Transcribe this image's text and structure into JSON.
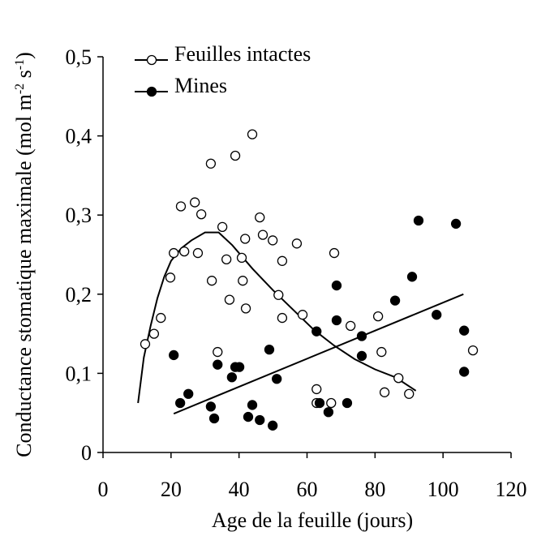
{
  "chart_data": {
    "type": "scatter",
    "xlabel": "Age de la feuille (jours)",
    "ylabel": [
      "Conductance stomatique maximale (mol m",
      "-2",
      " s",
      "-1",
      ")"
    ],
    "xlim": [
      0,
      120
    ],
    "xticks": [
      0,
      20,
      40,
      60,
      80,
      100,
      120
    ],
    "ylim": [
      0,
      0.5
    ],
    "yticks": [
      0,
      {
        "value": 0.1,
        "label": "0,1"
      },
      {
        "value": 0.2,
        "label": "0,2"
      },
      {
        "value": 0.3,
        "label": "0,3"
      },
      {
        "value": 0.4,
        "label": "0,4"
      },
      {
        "value": 0.5,
        "label": "0,5"
      }
    ],
    "legend": "upper left",
    "grid": false,
    "series": [
      {
        "name": "Feuilles intactes",
        "color": "#000000",
        "marker_fill": "#ffffff",
        "x": [
          12.4,
          15,
          17,
          19.8,
          20.8,
          22.9,
          23.9,
          27,
          27.9,
          28.9,
          31.7,
          32,
          33.7,
          35.1,
          36.3,
          37.2,
          38.9,
          40.8,
          41.1,
          41.8,
          42,
          43.9,
          46.1,
          47,
          49.9,
          51.6,
          52.7,
          52.7,
          57,
          58.7,
          62.8,
          62.8,
          67.1,
          68,
          72.8,
          80.9,
          81.9,
          82.8,
          86.9,
          90,
          108.8
        ],
        "values": [
          0.137,
          0.15,
          0.17,
          0.221,
          0.252,
          0.311,
          0.254,
          0.316,
          0.252,
          0.301,
          0.365,
          0.217,
          0.127,
          0.285,
          0.244,
          0.193,
          0.375,
          0.246,
          0.217,
          0.27,
          0.182,
          0.402,
          0.297,
          0.275,
          0.268,
          0.199,
          0.242,
          0.17,
          0.264,
          0.174,
          0.08,
          0.0625,
          0.0625,
          0.252,
          0.16,
          0.172,
          0.127,
          0.076,
          0.094,
          0.074,
          0.129
        ],
        "fit": {
          "x": [
            10.3,
            12,
            14,
            16,
            18,
            20,
            23,
            26,
            30,
            34,
            38,
            44,
            50,
            56,
            62,
            68,
            74,
            80,
            86,
            92
          ],
          "values": [
            0.0625,
            0.12,
            0.16,
            0.195,
            0.222,
            0.242,
            0.258,
            0.268,
            0.278,
            0.278,
            0.262,
            0.232,
            0.205,
            0.18,
            0.155,
            0.135,
            0.118,
            0.105,
            0.095,
            0.078
          ]
        }
      },
      {
        "name": "Mines",
        "color": "#000000",
        "marker_fill": "#000000",
        "x": [
          20.8,
          22.7,
          25.1,
          31.7,
          32.7,
          33.7,
          37.9,
          38.9,
          40.1,
          42.7,
          43.9,
          46.1,
          48.9,
          49.9,
          51.1,
          62.8,
          63.7,
          66.3,
          68.7,
          68.7,
          71.8,
          76.1,
          76.1,
          85.9,
          90.9,
          92.8,
          98.1,
          103.8,
          106.2,
          106.2
        ],
        "values": [
          0.123,
          0.0625,
          0.074,
          0.058,
          0.043,
          0.111,
          0.095,
          0.108,
          0.108,
          0.045,
          0.06,
          0.041,
          0.13,
          0.034,
          0.093,
          0.153,
          0.0625,
          0.051,
          0.211,
          0.167,
          0.0625,
          0.147,
          0.122,
          0.192,
          0.222,
          0.293,
          0.174,
          0.289,
          0.154,
          0.102
        ],
        "fit": {
          "x": [
            20.8,
            106
          ],
          "values": [
            0.049,
            0.2
          ]
        }
      }
    ]
  }
}
